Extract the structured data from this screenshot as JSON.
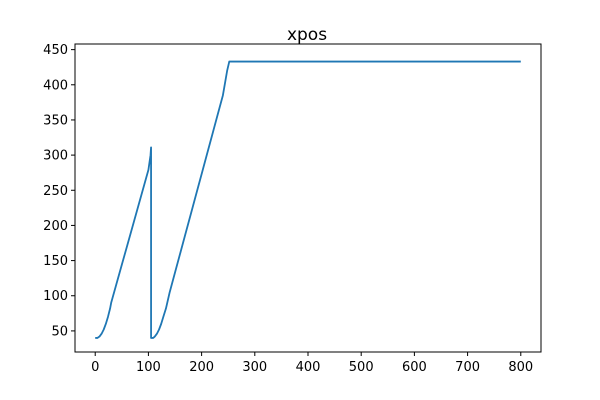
{
  "chart_data": {
    "type": "line",
    "title": "xpos",
    "xlabel": "",
    "ylabel": "",
    "xlim": [
      -38,
      838
    ],
    "ylim": [
      20,
      458
    ],
    "xticks": [
      0,
      100,
      200,
      300,
      400,
      500,
      600,
      700,
      800
    ],
    "yticks": [
      50,
      100,
      150,
      200,
      250,
      300,
      350,
      400,
      450
    ],
    "grid": false,
    "line_color": "#1f77b4",
    "series": [
      {
        "x": [
          0,
          4,
          8,
          12,
          16,
          20,
          24,
          28,
          30,
          40,
          50,
          60,
          70,
          80,
          90,
          100,
          104,
          105,
          105,
          109,
          112,
          116,
          120,
          124,
          128,
          133,
          140,
          150,
          160,
          170,
          180,
          190,
          200,
          210,
          220,
          230,
          240,
          248,
          252,
          300,
          400,
          500,
          600,
          700,
          800
        ],
        "y": [
          40,
          40,
          42,
          46,
          52,
          60,
          70,
          82,
          90,
          117,
          144,
          171,
          198,
          225,
          252,
          279,
          300,
          311,
          40,
          40,
          42,
          46,
          52,
          60,
          70,
          82,
          105,
          133,
          161,
          189,
          217,
          245,
          273,
          301,
          329,
          357,
          385,
          420,
          433,
          433,
          433,
          433,
          433,
          433,
          433
        ]
      }
    ]
  }
}
